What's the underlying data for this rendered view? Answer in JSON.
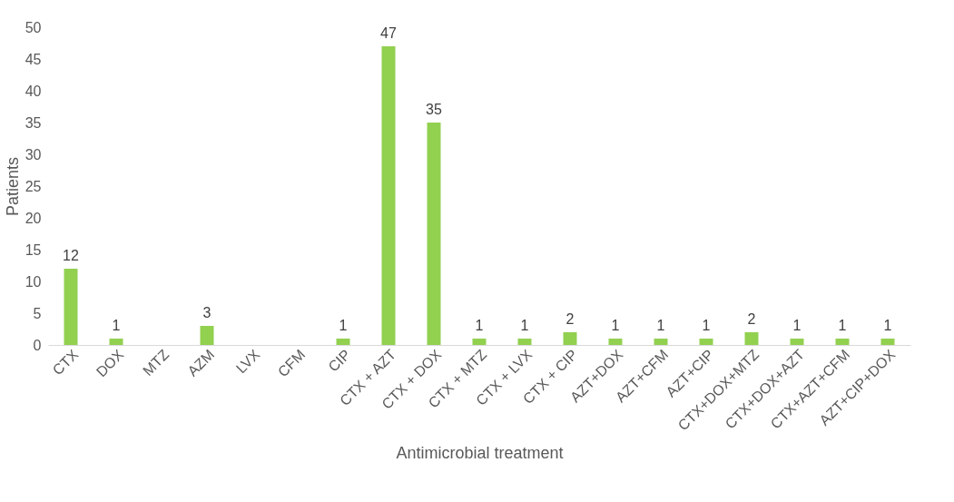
{
  "chart_data": {
    "type": "bar",
    "xlabel": "Antimicrobial treatment",
    "ylabel": "Patients",
    "categories": [
      "CTX",
      "DOX",
      "MTZ",
      "AZM",
      "LVX",
      "CFM",
      "CIP",
      "CTX + AZT",
      "CTX + DOX",
      "CTX + MTZ",
      "CTX + LVX",
      "CTX + CIP",
      "AZT+DOX",
      "AZT+CFM",
      "AZT+CIP",
      "CTX+DOX+MTZ",
      "CTX+DOX+AZT",
      "CTX+AZT+CFM",
      "AZT+CIP+DOX"
    ],
    "values": [
      12,
      1,
      0,
      3,
      0,
      0,
      1,
      47,
      35,
      1,
      1,
      2,
      1,
      1,
      1,
      2,
      1,
      1,
      1
    ],
    "value_labels": [
      "12",
      "1",
      null,
      "3",
      null,
      null,
      "1",
      "47",
      "35",
      "1",
      "1",
      "2",
      "1",
      "1",
      "1",
      "2",
      "1",
      "1",
      "1"
    ],
    "color": "#92d050",
    "ylim": [
      0,
      50
    ],
    "yticks": [
      0,
      5,
      10,
      15,
      20,
      25,
      30,
      35,
      40,
      45,
      50
    ],
    "grid": false
  }
}
